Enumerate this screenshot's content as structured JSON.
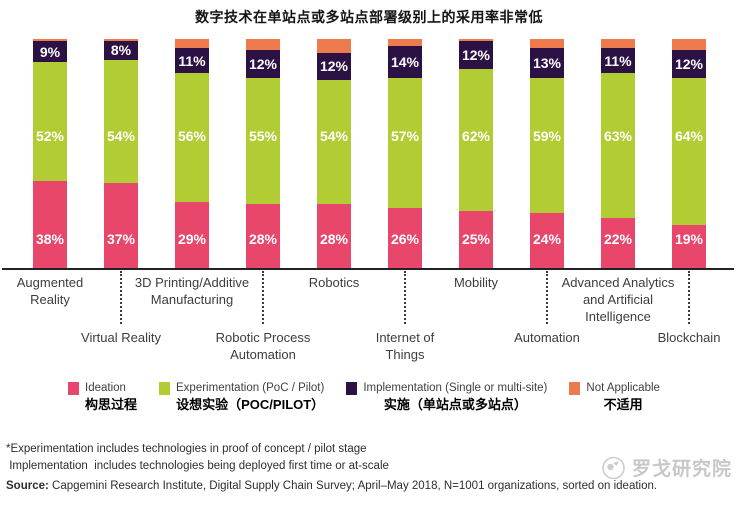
{
  "title": "数字技术在单站点或多站点部署级别上的采用率非常低",
  "chart_data": {
    "type": "bar",
    "stacked": true,
    "unit": "%",
    "ylim": [
      0,
      100
    ],
    "grid": false,
    "legend_position": "bottom",
    "value_label_format": "{v}%",
    "categories": [
      "Augmented Reality",
      "Virtual Reality",
      "3D Printing/Additive Manufacturing",
      "Robotic Process Automation",
      "Robotics",
      "Internet of Things",
      "Mobility",
      "Automation",
      "Advanced Analytics and Artificial Intelligence",
      "Blockchain"
    ],
    "series": [
      {
        "name": "Ideation",
        "name_zh": "构思过程",
        "color": "#e8476b",
        "values": [
          38,
          37,
          29,
          28,
          28,
          26,
          25,
          24,
          22,
          19
        ],
        "labels_shown": true
      },
      {
        "name": "Experimentation (PoC / Pilot)",
        "name_zh": "设想实验（POC/PILOT）",
        "color": "#b2cc34",
        "values": [
          52,
          54,
          56,
          55,
          54,
          57,
          62,
          59,
          63,
          64
        ],
        "labels_shown": true
      },
      {
        "name": "Implementation (Single or multi-site)",
        "name_zh": "实施（单站点或多站点）",
        "color": "#2b1144",
        "values": [
          9,
          8,
          11,
          12,
          12,
          14,
          12,
          13,
          11,
          12
        ],
        "labels_shown": true
      },
      {
        "name": "Not Applicable",
        "name_zh": "不适用",
        "color": "#ed7b4d",
        "values": [
          1,
          1,
          4,
          5,
          6,
          3,
          1,
          4,
          4,
          5
        ],
        "labels_shown": false
      }
    ]
  },
  "footnotes": [
    "*Experimentation includes technologies in proof of concept / pilot stage",
    " Implementation  includes technologies being deployed first time or at-scale"
  ],
  "source": {
    "label": "Source:",
    "text": " Capgemini Research Institute, Digital Supply Chain Survey; April–May 2018, N=1001 organizations, sorted on ideation."
  },
  "watermark": {
    "text": "罗戈研究院"
  }
}
